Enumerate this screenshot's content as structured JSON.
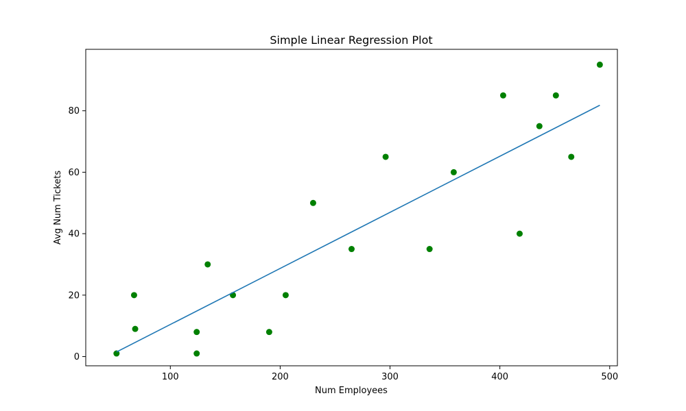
{
  "chart_data": {
    "type": "scatter",
    "title": "Simple Linear Regression Plot",
    "xlabel": "Num Employees",
    "ylabel": "Avg Num Tickets",
    "xlim": [
      23,
      507
    ],
    "ylim": [
      -3,
      100
    ],
    "xticks": [
      100,
      200,
      300,
      400,
      500
    ],
    "yticks": [
      0,
      20,
      40,
      60,
      80
    ],
    "grid": false,
    "colors": {
      "points": "#008000",
      "line": "#1f77b4"
    },
    "series": [
      {
        "type": "scatter",
        "x": [
          51,
          67,
          68,
          124,
          124,
          134,
          157,
          190,
          205,
          230,
          265,
          296,
          336,
          358,
          403,
          418,
          436,
          451,
          465,
          491
        ],
        "y": [
          1,
          20,
          9,
          8,
          1,
          30,
          20,
          8,
          20,
          50,
          35,
          65,
          35,
          60,
          85,
          40,
          75,
          85,
          65,
          95
        ]
      },
      {
        "type": "line",
        "x": [
          51,
          491
        ],
        "y": [
          1.5,
          81.8
        ]
      }
    ]
  }
}
